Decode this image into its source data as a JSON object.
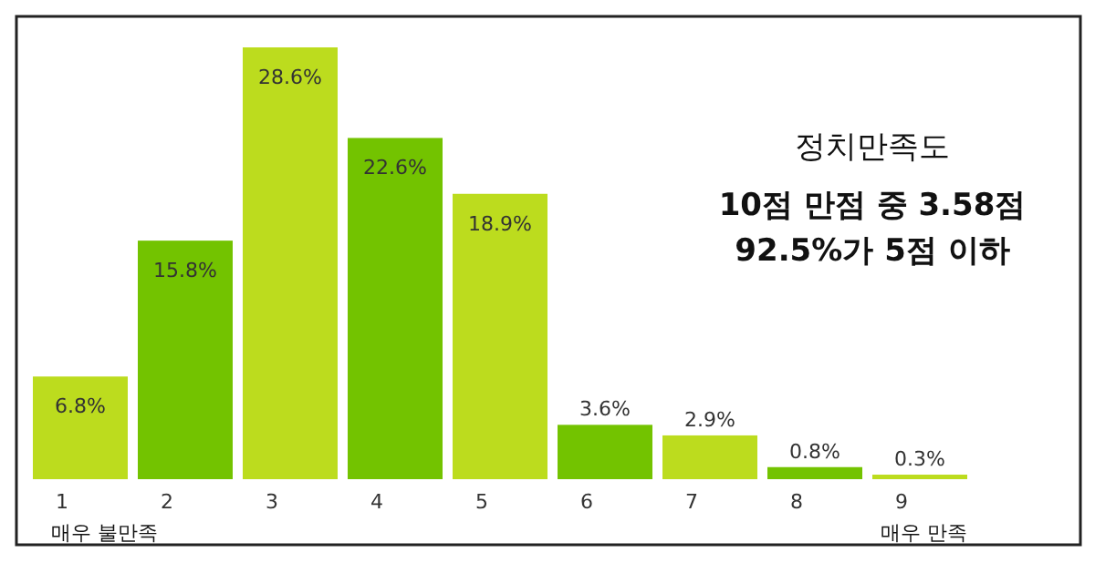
{
  "chart_data": {
    "type": "bar",
    "title": "정치만족도",
    "subtitle": "10점 만점 중 3.58점",
    "annotations": [
      "92.5%가 5점 이하",
      "매우 불만족",
      "매우 만족"
    ],
    "categories": [
      "1",
      "2",
      "3",
      "4",
      "5",
      "6",
      "7",
      "8",
      "9"
    ],
    "values": [
      6.8,
      15.8,
      28.6,
      22.6,
      18.9,
      3.6,
      2.9,
      0.8,
      0.3
    ],
    "value_labels": [
      "6.8%",
      "15.8%",
      "28.6%",
      "22.6%",
      "18.9%",
      "3.6%",
      "2.9%",
      "0.8%",
      "0.3%"
    ],
    "colors": [
      "#bcdc1e",
      "#73c300",
      "#bcdc1e",
      "#73c300",
      "#bcdc1e",
      "#73c300",
      "#bcdc1e",
      "#73c300",
      "#bcdc1e"
    ]
  }
}
